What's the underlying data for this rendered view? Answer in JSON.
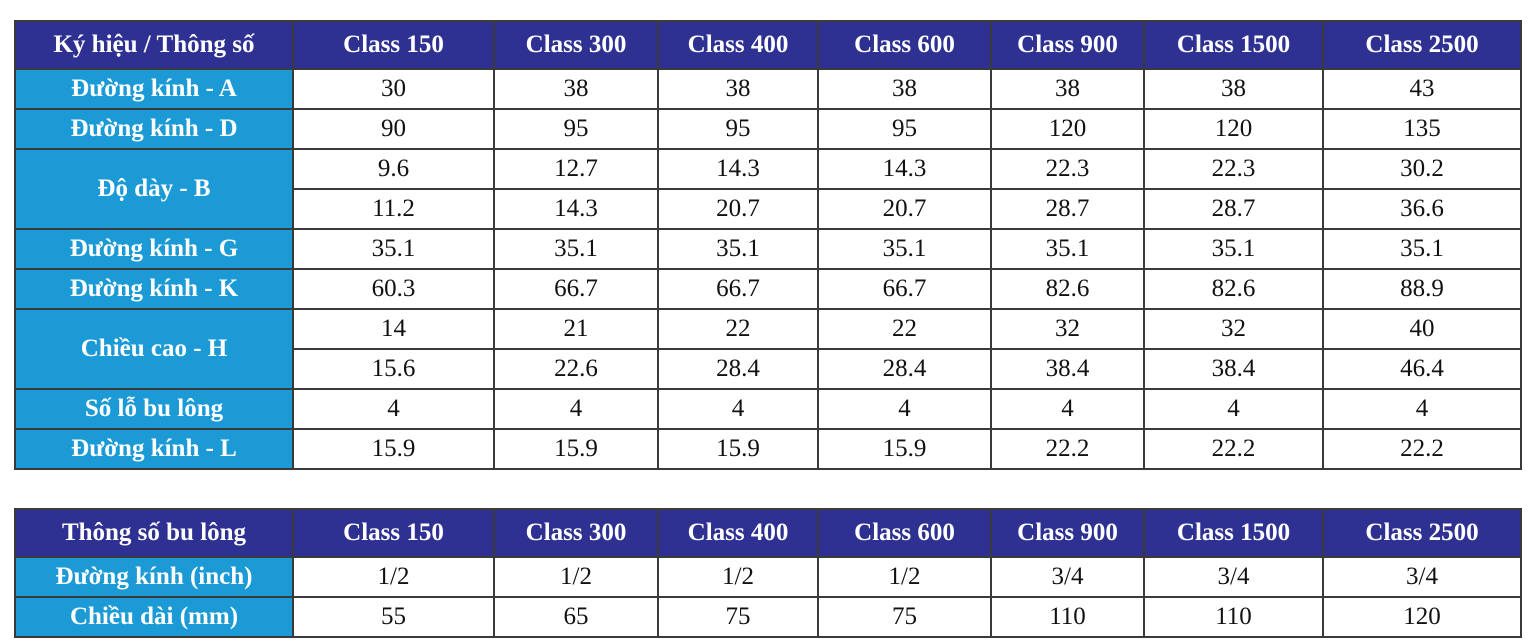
{
  "table1": {
    "headers": [
      "Ký hiệu / Thông số",
      "Class 150",
      "Class 300",
      "Class 400",
      "Class 600",
      "Class 900",
      "Class 1500",
      "Class 2500"
    ],
    "rows": [
      {
        "label": "Đường kính - A",
        "lines": [
          [
            "30",
            "38",
            "38",
            "38",
            "38",
            "38",
            "43"
          ]
        ]
      },
      {
        "label": "Đường kính - D",
        "lines": [
          [
            "90",
            "95",
            "95",
            "95",
            "120",
            "120",
            "135"
          ]
        ]
      },
      {
        "label": "Độ dày - B",
        "lines": [
          [
            "9.6",
            "12.7",
            "14.3",
            "14.3",
            "22.3",
            "22.3",
            "30.2"
          ],
          [
            "11.2",
            "14.3",
            "20.7",
            "20.7",
            "28.7",
            "28.7",
            "36.6"
          ]
        ]
      },
      {
        "label": "Đường kính - G",
        "lines": [
          [
            "35.1",
            "35.1",
            "35.1",
            "35.1",
            "35.1",
            "35.1",
            "35.1"
          ]
        ]
      },
      {
        "label": "Đường kính - K",
        "lines": [
          [
            "60.3",
            "66.7",
            "66.7",
            "66.7",
            "82.6",
            "82.6",
            "88.9"
          ]
        ]
      },
      {
        "label": "Chiều cao - H",
        "lines": [
          [
            "14",
            "21",
            "22",
            "22",
            "32",
            "32",
            "40"
          ],
          [
            "15.6",
            "22.6",
            "28.4",
            "28.4",
            "38.4",
            "38.4",
            "46.4"
          ]
        ]
      },
      {
        "label": "Số lỗ bu lông",
        "lines": [
          [
            "4",
            "4",
            "4",
            "4",
            "4",
            "4",
            "4"
          ]
        ]
      },
      {
        "label": "Đường kính - L",
        "lines": [
          [
            "15.9",
            "15.9",
            "15.9",
            "15.9",
            "22.2",
            "22.2",
            "22.2"
          ]
        ]
      }
    ]
  },
  "table2": {
    "headers": [
      "Thông số bu lông",
      "Class 150",
      "Class 300",
      "Class 400",
      "Class 600",
      "Class 900",
      "Class 1500",
      "Class 2500"
    ],
    "rows": [
      {
        "label": "Đường kính (inch)",
        "lines": [
          [
            "1/2",
            "1/2",
            "1/2",
            "1/2",
            "3/4",
            "3/4",
            "3/4"
          ]
        ]
      },
      {
        "label": "Chiều dài (mm)",
        "lines": [
          [
            "55",
            "65",
            "75",
            "75",
            "110",
            "110",
            "120"
          ]
        ]
      }
    ]
  }
}
